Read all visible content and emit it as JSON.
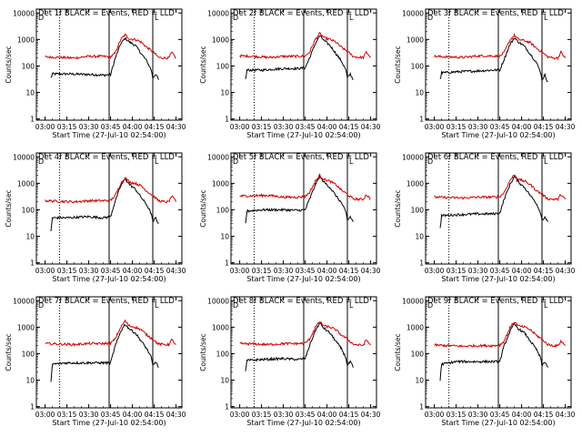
{
  "chart_data": [
    {
      "type": "line",
      "title": "Det 1f BLACK = Events, RED = LLD",
      "xlabel": "Start Time (27-Jul-10 02:54:00)",
      "ylabel": "Counts/sec",
      "ylim": [
        1,
        10000
      ],
      "yscale": "log",
      "xticks": [
        "03:00",
        "03:15",
        "03:30",
        "03:45",
        "04:00",
        "04:15",
        "04:30"
      ],
      "ytick_labels": [
        "1",
        "10",
        "100",
        "1000",
        "10000"
      ],
      "corner_mark": "D",
      "legend_mark": "L",
      "series": [
        {
          "color": "#000000",
          "x": [
            "03:04",
            "03:05",
            "03:15",
            "03:30",
            "03:40",
            "03:45",
            "03:48",
            "03:52",
            "03:55",
            "03:58",
            "04:02",
            "04:06",
            "04:10",
            "04:13",
            "04:14",
            "04:16",
            "04:18"
          ],
          "values": [
            35,
            50,
            50,
            48,
            45,
            47,
            180,
            700,
            1100,
            800,
            600,
            300,
            150,
            70,
            35,
            50,
            30
          ]
        },
        {
          "color": "#d40000",
          "x": [
            "03:00",
            "03:10",
            "03:20",
            "03:30",
            "03:40",
            "03:45",
            "03:48",
            "03:52",
            "03:55",
            "03:58",
            "04:02",
            "04:06",
            "04:10",
            "04:14",
            "04:18",
            "04:22",
            "04:25",
            "04:27",
            "04:30"
          ],
          "values": [
            220,
            210,
            200,
            230,
            230,
            220,
            300,
            1000,
            1500,
            1050,
            1000,
            800,
            500,
            350,
            210,
            200,
            200,
            320,
            200
          ]
        }
      ]
    },
    {
      "type": "line",
      "title": "Det 2f BLACK = Events, RED = LLD",
      "xlabel": "Start Time (27-Jul-10 02:54:00)",
      "ylabel": "Counts/sec",
      "ylim": [
        1,
        10000
      ],
      "yscale": "log",
      "xticks": [
        "03:00",
        "03:15",
        "03:30",
        "03:45",
        "04:00",
        "04:15",
        "04:30"
      ],
      "ytick_labels": [
        "1",
        "10",
        "100",
        "1000",
        "10000"
      ],
      "corner_mark": "D",
      "legend_mark": "L",
      "series": [
        {
          "color": "#000000",
          "x": [
            "03:04",
            "03:05",
            "03:15",
            "03:30",
            "03:40",
            "03:45",
            "03:48",
            "03:52",
            "03:55",
            "03:58",
            "04:02",
            "04:06",
            "04:10",
            "04:13",
            "04:14",
            "04:16",
            "04:18"
          ],
          "values": [
            30,
            70,
            70,
            80,
            80,
            85,
            200,
            700,
            1400,
            900,
            600,
            300,
            150,
            70,
            35,
            50,
            30
          ]
        },
        {
          "color": "#d40000",
          "x": [
            "03:00",
            "03:10",
            "03:20",
            "03:30",
            "03:40",
            "03:45",
            "03:48",
            "03:52",
            "03:55",
            "03:58",
            "04:02",
            "04:06",
            "04:10",
            "04:14",
            "04:18",
            "04:22",
            "04:25",
            "04:27",
            "04:30"
          ],
          "values": [
            240,
            230,
            210,
            230,
            230,
            240,
            330,
            1000,
            1700,
            1150,
            1000,
            800,
            500,
            350,
            230,
            210,
            210,
            330,
            210
          ]
        }
      ]
    },
    {
      "type": "line",
      "title": "Det 3f BLACK = Events, RED = LLD",
      "xlabel": "Start Time (27-Jul-10 02:54:00)",
      "ylabel": "Counts/sec",
      "ylim": [
        1,
        10000
      ],
      "yscale": "log",
      "xticks": [
        "03:00",
        "03:15",
        "03:30",
        "03:45",
        "04:00",
        "04:15",
        "04:30"
      ],
      "ytick_labels": [
        "1",
        "10",
        "100",
        "1000",
        "10000"
      ],
      "corner_mark": "D",
      "legend_mark": "L",
      "series": [
        {
          "color": "#000000",
          "x": [
            "03:04",
            "03:05",
            "03:15",
            "03:30",
            "03:40",
            "03:45",
            "03:48",
            "03:52",
            "03:55",
            "03:58",
            "04:02",
            "04:06",
            "04:10",
            "04:13",
            "04:14",
            "04:16",
            "04:18"
          ],
          "values": [
            30,
            55,
            60,
            65,
            70,
            70,
            180,
            650,
            1150,
            800,
            550,
            280,
            140,
            60,
            30,
            45,
            25
          ]
        },
        {
          "color": "#d40000",
          "x": [
            "03:00",
            "03:10",
            "03:20",
            "03:30",
            "03:40",
            "03:45",
            "03:48",
            "03:52",
            "03:55",
            "03:58",
            "04:02",
            "04:06",
            "04:10",
            "04:14",
            "04:18",
            "04:22",
            "04:25",
            "04:27",
            "04:30"
          ],
          "values": [
            230,
            220,
            210,
            240,
            240,
            230,
            320,
            950,
            1400,
            1000,
            900,
            750,
            480,
            330,
            220,
            200,
            200,
            330,
            200
          ]
        }
      ]
    },
    {
      "type": "line",
      "title": "Det 4f BLACK = Events, RED = LLD",
      "xlabel": "Start Time (27-Jul-10 02:54:00)",
      "ylabel": "Counts/sec",
      "ylim": [
        1,
        10000
      ],
      "yscale": "log",
      "xticks": [
        "03:00",
        "03:15",
        "03:30",
        "03:45",
        "04:00",
        "04:15",
        "04:30"
      ],
      "ytick_labels": [
        "1",
        "10",
        "100",
        "1000",
        "10000"
      ],
      "corner_mark": "D",
      "legend_mark": "L",
      "series": [
        {
          "color": "#000000",
          "x": [
            "03:04",
            "03:05",
            "03:15",
            "03:30",
            "03:40",
            "03:45",
            "03:48",
            "03:52",
            "03:55",
            "03:58",
            "04:02",
            "04:06",
            "04:10",
            "04:13",
            "04:14",
            "04:16",
            "04:18"
          ],
          "values": [
            15,
            50,
            50,
            55,
            50,
            55,
            200,
            800,
            1500,
            900,
            600,
            300,
            150,
            70,
            35,
            50,
            30
          ]
        },
        {
          "color": "#d40000",
          "x": [
            "03:00",
            "03:10",
            "03:20",
            "03:30",
            "03:40",
            "03:45",
            "03:48",
            "03:52",
            "03:55",
            "03:58",
            "04:02",
            "04:06",
            "04:10",
            "04:14",
            "04:18",
            "04:22",
            "04:25",
            "04:27",
            "04:30"
          ],
          "values": [
            220,
            210,
            200,
            220,
            220,
            230,
            330,
            1000,
            1600,
            1100,
            1000,
            800,
            500,
            350,
            220,
            200,
            200,
            330,
            200
          ]
        }
      ]
    },
    {
      "type": "line",
      "title": "Det 5f BLACK = Events, RED = LLD",
      "xlabel": "Start Time (27-Jul-10 02:54:00)",
      "ylabel": "Counts/sec",
      "ylim": [
        1,
        10000
      ],
      "yscale": "log",
      "xticks": [
        "03:00",
        "03:15",
        "03:30",
        "03:45",
        "04:00",
        "04:15",
        "04:30"
      ],
      "ytick_labels": [
        "1",
        "10",
        "100",
        "1000",
        "10000"
      ],
      "corner_mark": "D",
      "legend_mark": "L",
      "series": [
        {
          "color": "#000000",
          "x": [
            "03:04",
            "03:05",
            "03:15",
            "03:30",
            "03:40",
            "03:45",
            "03:48",
            "03:52",
            "03:55",
            "03:58",
            "04:02",
            "04:06",
            "04:10",
            "04:13",
            "04:14",
            "04:16",
            "04:18"
          ],
          "values": [
            30,
            90,
            100,
            100,
            95,
            100,
            250,
            900,
            1800,
            1100,
            700,
            350,
            180,
            80,
            40,
            55,
            35
          ]
        },
        {
          "color": "#d40000",
          "x": [
            "03:00",
            "03:10",
            "03:20",
            "03:30",
            "03:40",
            "03:45",
            "03:48",
            "03:52",
            "03:55",
            "03:58",
            "04:02",
            "04:06",
            "04:10",
            "04:14",
            "04:18",
            "04:22",
            "04:25",
            "04:27",
            "04:30"
          ],
          "values": [
            330,
            340,
            350,
            300,
            300,
            320,
            450,
            1200,
            2000,
            1400,
            1200,
            900,
            550,
            380,
            260,
            250,
            250,
            380,
            250
          ]
        }
      ]
    },
    {
      "type": "line",
      "title": "Det 6f BLACK = Events, RED = LLD",
      "xlabel": "Start Time (27-Jul-10 02:54:00)",
      "ylabel": "Counts/sec",
      "ylim": [
        1,
        10000
      ],
      "yscale": "log",
      "xticks": [
        "03:00",
        "03:15",
        "03:30",
        "03:45",
        "04:00",
        "04:15",
        "04:30"
      ],
      "ytick_labels": [
        "1",
        "10",
        "100",
        "1000",
        "10000"
      ],
      "corner_mark": "D",
      "legend_mark": "L",
      "series": [
        {
          "color": "#000000",
          "x": [
            "03:04",
            "03:05",
            "03:15",
            "03:30",
            "03:40",
            "03:45",
            "03:48",
            "03:52",
            "03:55",
            "03:58",
            "04:02",
            "04:06",
            "04:10",
            "04:13",
            "04:14",
            "04:16",
            "04:18"
          ],
          "values": [
            20,
            60,
            65,
            70,
            70,
            75,
            250,
            900,
            1800,
            1100,
            700,
            350,
            180,
            80,
            40,
            55,
            35
          ]
        },
        {
          "color": "#d40000",
          "x": [
            "03:00",
            "03:10",
            "03:20",
            "03:30",
            "03:40",
            "03:45",
            "03:48",
            "03:52",
            "03:55",
            "03:58",
            "04:02",
            "04:06",
            "04:10",
            "04:14",
            "04:18",
            "04:22",
            "04:25",
            "04:27",
            "04:30"
          ],
          "values": [
            300,
            290,
            280,
            300,
            300,
            310,
            450,
            1300,
            2100,
            1400,
            1200,
            900,
            550,
            380,
            260,
            250,
            250,
            380,
            250
          ]
        }
      ]
    },
    {
      "type": "line",
      "title": "Det 7f BLACK = Events, RED = LLD",
      "xlabel": "Start Time (27-Jul-10 02:54:00)",
      "ylabel": "Counts/sec",
      "ylim": [
        1,
        10000
      ],
      "yscale": "log",
      "xticks": [
        "03:00",
        "03:15",
        "03:30",
        "03:45",
        "04:00",
        "04:15",
        "04:30"
      ],
      "ytick_labels": [
        "1",
        "10",
        "100",
        "1000",
        "10000"
      ],
      "corner_mark": "D",
      "legend_mark": "L",
      "series": [
        {
          "color": "#000000",
          "x": [
            "03:04",
            "03:05",
            "03:15",
            "03:30",
            "03:40",
            "03:45",
            "03:48",
            "03:52",
            "03:55",
            "03:58",
            "04:02",
            "04:06",
            "04:10",
            "04:13",
            "04:14",
            "04:16",
            "04:18"
          ],
          "values": [
            8,
            40,
            45,
            45,
            45,
            45,
            180,
            700,
            1300,
            850,
            600,
            300,
            150,
            70,
            35,
            50,
            30
          ]
        },
        {
          "color": "#d40000",
          "x": [
            "03:00",
            "03:10",
            "03:20",
            "03:30",
            "03:40",
            "03:45",
            "03:48",
            "03:52",
            "03:55",
            "03:58",
            "04:02",
            "04:06",
            "04:10",
            "04:14",
            "04:18",
            "04:22",
            "04:25",
            "04:27",
            "04:30"
          ],
          "values": [
            240,
            230,
            220,
            240,
            240,
            250,
            350,
            1000,
            1700,
            1100,
            1000,
            800,
            500,
            350,
            230,
            220,
            220,
            330,
            220
          ]
        }
      ]
    },
    {
      "type": "line",
      "title": "Det 8f BLACK = Events, RED = LLD",
      "xlabel": "Start Time (27-Jul-10 02:54:00)",
      "ylabel": "Counts/sec",
      "ylim": [
        1,
        10000
      ],
      "yscale": "log",
      "xticks": [
        "03:00",
        "03:15",
        "03:30",
        "03:45",
        "04:00",
        "04:15",
        "04:30"
      ],
      "ytick_labels": [
        "1",
        "10",
        "100",
        "1000",
        "10000"
      ],
      "corner_mark": "D",
      "legend_mark": "L",
      "series": [
        {
          "color": "#000000",
          "x": [
            "03:04",
            "03:05",
            "03:15",
            "03:30",
            "03:40",
            "03:45",
            "03:48",
            "03:52",
            "03:55",
            "03:58",
            "04:02",
            "04:06",
            "04:10",
            "04:13",
            "04:14",
            "04:16",
            "04:18"
          ],
          "values": [
            20,
            55,
            60,
            65,
            60,
            65,
            200,
            750,
            1400,
            900,
            600,
            300,
            150,
            70,
            35,
            50,
            30
          ]
        },
        {
          "color": "#d40000",
          "x": [
            "03:00",
            "03:10",
            "03:20",
            "03:30",
            "03:40",
            "03:45",
            "03:48",
            "03:52",
            "03:55",
            "03:58",
            "04:02",
            "04:06",
            "04:10",
            "04:14",
            "04:18",
            "04:22",
            "04:25",
            "04:27",
            "04:30"
          ],
          "values": [
            240,
            230,
            220,
            240,
            240,
            250,
            350,
            1000,
            1600,
            1100,
            1000,
            800,
            500,
            350,
            230,
            210,
            210,
            330,
            210
          ]
        }
      ]
    },
    {
      "type": "line",
      "title": "Det 9f BLACK = Events, RED = LLD",
      "xlabel": "Start Time (27-Jul-10 02:54:00)",
      "ylabel": "Counts/sec",
      "ylim": [
        1,
        10000
      ],
      "yscale": "log",
      "xticks": [
        "03:00",
        "03:15",
        "03:30",
        "03:45",
        "04:00",
        "04:15",
        "04:30"
      ],
      "ytick_labels": [
        "1",
        "10",
        "100",
        "1000",
        "10000"
      ],
      "corner_mark": "D",
      "legend_mark": "L",
      "series": [
        {
          "color": "#000000",
          "x": [
            "03:04",
            "03:05",
            "03:15",
            "03:30",
            "03:40",
            "03:45",
            "03:48",
            "03:52",
            "03:55",
            "03:58",
            "04:02",
            "04:06",
            "04:10",
            "04:13",
            "04:14",
            "04:16",
            "04:18"
          ],
          "values": [
            10,
            40,
            50,
            50,
            50,
            50,
            200,
            700,
            1300,
            850,
            600,
            300,
            150,
            70,
            35,
            50,
            30
          ]
        },
        {
          "color": "#d40000",
          "x": [
            "03:00",
            "03:10",
            "03:20",
            "03:30",
            "03:40",
            "03:45",
            "03:48",
            "03:52",
            "03:55",
            "03:58",
            "04:02",
            "04:06",
            "04:10",
            "04:14",
            "04:18",
            "04:22",
            "04:25",
            "04:27",
            "04:30"
          ],
          "values": [
            210,
            200,
            190,
            200,
            200,
            210,
            300,
            950,
            1600,
            1100,
            1000,
            800,
            500,
            350,
            220,
            200,
            200,
            300,
            200
          ]
        }
      ]
    }
  ]
}
